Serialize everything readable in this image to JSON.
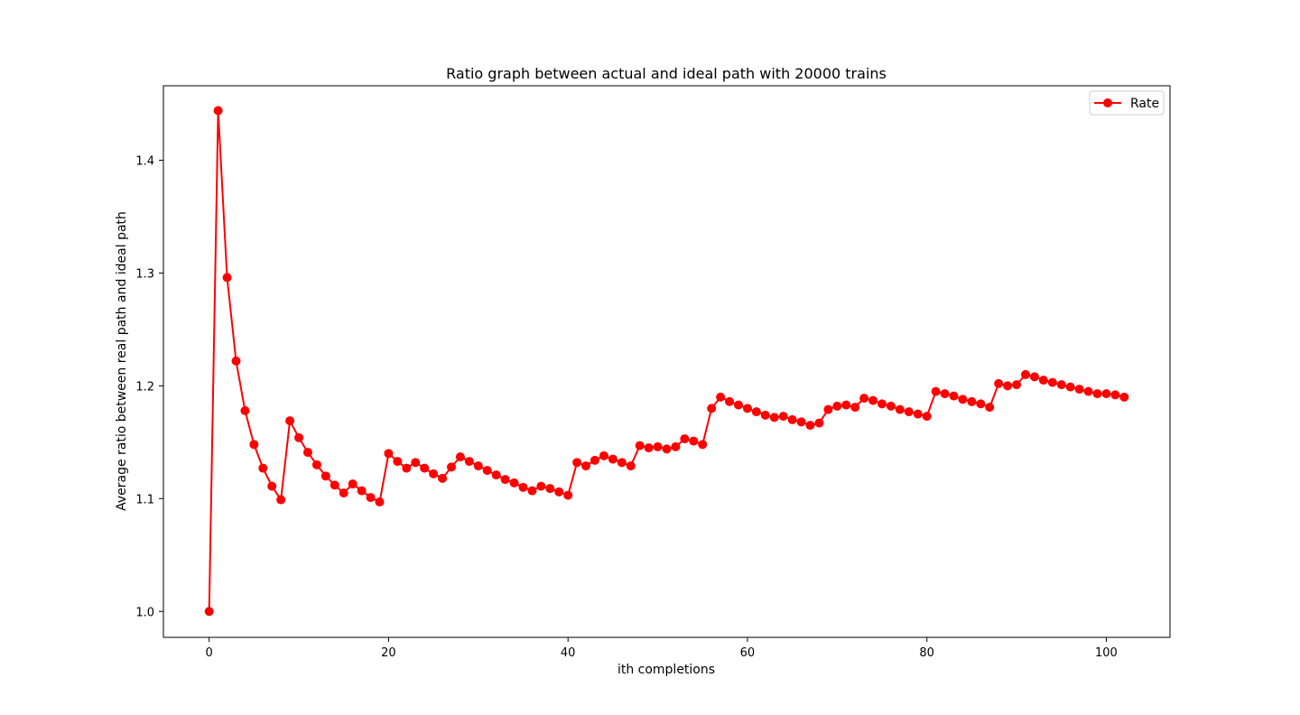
{
  "chart_data": {
    "type": "line",
    "title": "Ratio graph between actual and ideal path with 20000 trains",
    "xlabel": "ith completions",
    "ylabel": "Average ratio between real path and ideal path",
    "xlim": [
      -5.1,
      107.1
    ],
    "ylim": [
      0.977,
      1.466
    ],
    "xticks": [
      0,
      20,
      40,
      60,
      80,
      100
    ],
    "xtick_labels": [
      "0",
      "20",
      "40",
      "60",
      "80",
      "100"
    ],
    "yticks": [
      1.0,
      1.1,
      1.2,
      1.3,
      1.4
    ],
    "ytick_labels": [
      "1.0",
      "1.1",
      "1.2",
      "1.3",
      "1.4"
    ],
    "grid": false,
    "legend": {
      "position": "upper-right",
      "entries": [
        "Rate"
      ]
    },
    "series": [
      {
        "name": "Rate",
        "color": "#ff0000",
        "marker": "circle",
        "x": [
          0,
          1,
          2,
          3,
          4,
          5,
          6,
          7,
          8,
          9,
          10,
          11,
          12,
          13,
          14,
          15,
          16,
          17,
          18,
          19,
          20,
          21,
          22,
          23,
          24,
          25,
          26,
          27,
          28,
          29,
          30,
          31,
          32,
          33,
          34,
          35,
          36,
          37,
          38,
          39,
          40,
          41,
          42,
          43,
          44,
          45,
          46,
          47,
          48,
          49,
          50,
          51,
          52,
          53,
          54,
          55,
          56,
          57,
          58,
          59,
          60,
          61,
          62,
          63,
          64,
          65,
          66,
          67,
          68,
          69,
          70,
          71,
          72,
          73,
          74,
          75,
          76,
          77,
          78,
          79,
          80,
          81,
          82,
          83,
          84,
          85,
          86,
          87,
          88,
          89,
          90,
          91,
          92,
          93,
          94,
          95,
          96,
          97,
          98,
          99,
          100,
          101,
          102
        ],
        "y": [
          1.0,
          1.444,
          1.296,
          1.222,
          1.178,
          1.148,
          1.127,
          1.111,
          1.099,
          1.169,
          1.154,
          1.141,
          1.13,
          1.12,
          1.112,
          1.105,
          1.113,
          1.107,
          1.101,
          1.097,
          1.14,
          1.133,
          1.127,
          1.132,
          1.127,
          1.122,
          1.118,
          1.128,
          1.137,
          1.133,
          1.129,
          1.125,
          1.121,
          1.117,
          1.114,
          1.11,
          1.107,
          1.111,
          1.109,
          1.106,
          1.103,
          1.132,
          1.129,
          1.134,
          1.138,
          1.135,
          1.132,
          1.129,
          1.147,
          1.145,
          1.146,
          1.144,
          1.146,
          1.153,
          1.151,
          1.148,
          1.18,
          1.19,
          1.186,
          1.183,
          1.18,
          1.177,
          1.174,
          1.172,
          1.173,
          1.17,
          1.168,
          1.165,
          1.167,
          1.179,
          1.182,
          1.183,
          1.181,
          1.189,
          1.187,
          1.184,
          1.182,
          1.179,
          1.177,
          1.175,
          1.173,
          1.195,
          1.193,
          1.191,
          1.188,
          1.186,
          1.184,
          1.181,
          1.202,
          1.2,
          1.201,
          1.21,
          1.208,
          1.205,
          1.203,
          1.201,
          1.199,
          1.197,
          1.195,
          1.193,
          1.193,
          1.192,
          1.19
        ]
      }
    ]
  }
}
